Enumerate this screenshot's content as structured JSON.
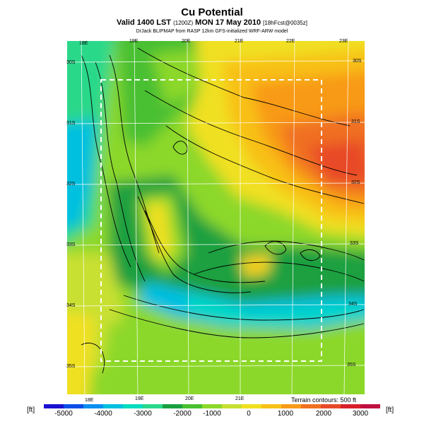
{
  "header": {
    "title": "Cu Potential",
    "valid_prefix": "Valid 1400 LST",
    "valid_zulu": "(1200Z)",
    "valid_date": "MON 17 May 2010",
    "forecast": "[18hFcst@0035z]",
    "credit": "DrJack BLIPMAP from RASP 12km GFS-initialized WRF-ARW model"
  },
  "map": {
    "lon_labels_top": [
      "18E",
      "19E",
      "20E",
      "21E",
      "22E",
      "23E"
    ],
    "lon_labels_bottom": [
      "18E",
      "19E",
      "20E",
      "21E"
    ],
    "lat_labels_left": [
      "30S",
      "31S",
      "32S",
      "33S",
      "34S",
      "35S"
    ],
    "lat_labels_right": [
      "30S",
      "31S",
      "32S",
      "33S",
      "34S",
      "35S"
    ]
  },
  "colorbar": {
    "unit_left": "[ft]",
    "unit_right": "[ft]",
    "ticks": [
      "-5000",
      "-4000",
      "-3000",
      "-2000",
      "-1000",
      "0",
      "1000",
      "2000",
      "3000"
    ],
    "colors": [
      "#1a10d0",
      "#0a4ee8",
      "#0a8ef0",
      "#00c0e0",
      "#00dcc0",
      "#2ad88a",
      "#1aa040",
      "#48c030",
      "#8cd82a",
      "#c8e030",
      "#f0e020",
      "#f8c018",
      "#f89a18",
      "#f07020",
      "#e84a28",
      "#d8202a",
      "#c01040"
    ],
    "terrain_note": "Terrain contours: 500 ft"
  }
}
